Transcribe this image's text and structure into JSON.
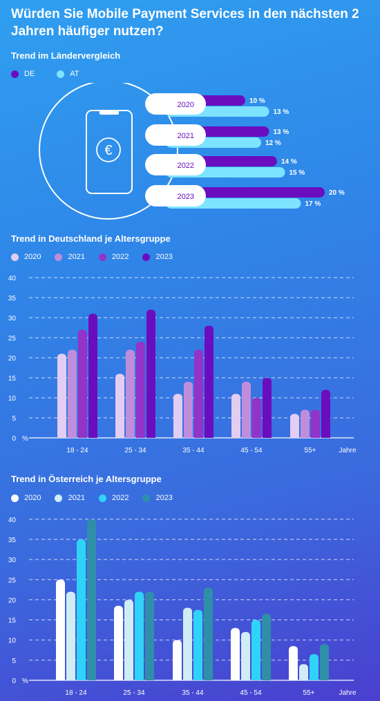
{
  "title": "Würden Sie Mobile Payment Services in den nächsten 2 Jahren häufiger nutzen?",
  "colors": {
    "de": "#6a0dbf",
    "at": "#7ee3ff",
    "de_years": [
      "#e3cdf2",
      "#c08ddc",
      "#9333c8",
      "#6a0dbf"
    ],
    "at_years": [
      "#ffffff",
      "#d0ecf7",
      "#2fd3f7",
      "#2f8fa8"
    ]
  },
  "icons": [
    "phone-icon",
    "euro-icon"
  ],
  "chart_data": [
    {
      "type": "bar",
      "title": "Trend im Ländervergleich",
      "categories": [
        "2020",
        "2021",
        "2022",
        "2023"
      ],
      "series": [
        {
          "name": "DE",
          "values": [
            10,
            13,
            14,
            20
          ],
          "labels": [
            "10 %",
            "13 %",
            "14 %",
            "20 %"
          ]
        },
        {
          "name": "AT",
          "values": [
            13,
            12,
            15,
            17
          ],
          "labels": [
            "13 %",
            "12 %",
            "15 %",
            "17 %"
          ]
        }
      ],
      "legend_placement": "top-left"
    },
    {
      "type": "bar",
      "title": "Trend in Deutschland je Altersgruppe",
      "categories": [
        "18 - 24",
        "25 - 34",
        "35 - 44",
        "45 - 54",
        "55+"
      ],
      "series": [
        {
          "name": "2020",
          "values": [
            21,
            16,
            11,
            11,
            6
          ]
        },
        {
          "name": "2021",
          "values": [
            22,
            22,
            14,
            14,
            7
          ]
        },
        {
          "name": "2022",
          "values": [
            27,
            24,
            22,
            10,
            7
          ]
        },
        {
          "name": "2023",
          "values": [
            31,
            32,
            28,
            15,
            12
          ]
        }
      ],
      "yticks": [
        "0",
        "5",
        "10",
        "15",
        "20",
        "25",
        "30",
        "35",
        "40"
      ],
      "ylim": [
        0,
        40
      ],
      "yunit": "%",
      "xunit": "Jahre",
      "grid": true,
      "legend_placement": "top-left"
    },
    {
      "type": "bar",
      "title": "Trend in Österreich je Altersgruppe",
      "categories": [
        "18 - 24",
        "25 - 34",
        "35 - 44",
        "45 - 54",
        "55+"
      ],
      "series": [
        {
          "name": "2020",
          "values": [
            25,
            18.5,
            10,
            13,
            8.5
          ]
        },
        {
          "name": "2021",
          "values": [
            22,
            20,
            18,
            12,
            4
          ]
        },
        {
          "name": "2022",
          "values": [
            35,
            22,
            17.5,
            15,
            6.5
          ]
        },
        {
          "name": "2023",
          "values": [
            40,
            22,
            23,
            16.5,
            9
          ]
        }
      ],
      "yticks": [
        "0",
        "5",
        "10",
        "15",
        "20",
        "25",
        "30",
        "35",
        "40"
      ],
      "ylim": [
        0,
        40
      ],
      "yunit": "%",
      "xunit": "Jahre",
      "grid": true,
      "legend_placement": "top-left"
    }
  ]
}
